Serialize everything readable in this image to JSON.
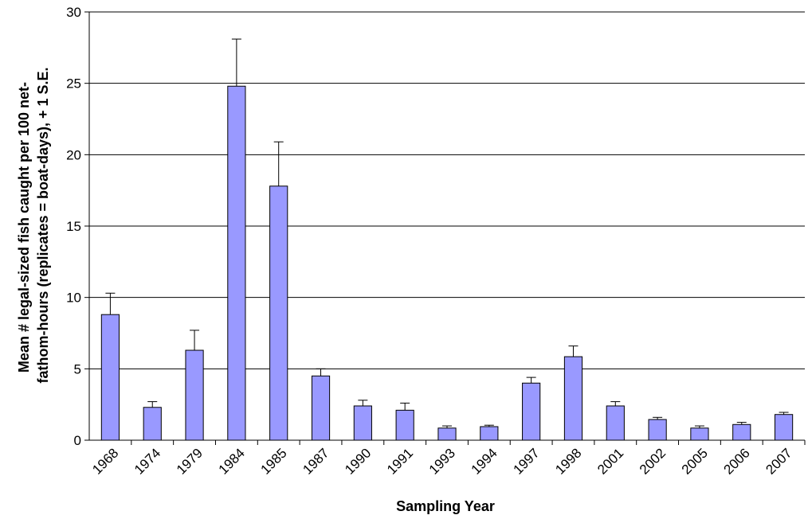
{
  "chart_data": {
    "type": "bar",
    "title": "",
    "xlabel": "Sampling Year",
    "ylabel_lines": [
      "Mean # legal-sized fish caught per 100 net-",
      "fathom-hours (replicates = boat-days), + 1 S.E."
    ],
    "categories": [
      "1968",
      "1974",
      "1979",
      "1984",
      "1985",
      "1987",
      "1990",
      "1991",
      "1993",
      "1994",
      "1997",
      "1998",
      "2001",
      "2002",
      "2005",
      "2006",
      "2007"
    ],
    "values": [
      8.8,
      2.3,
      6.3,
      24.8,
      17.8,
      4.5,
      2.4,
      2.1,
      0.85,
      0.95,
      4.0,
      5.85,
      2.4,
      1.45,
      0.85,
      1.1,
      1.8
    ],
    "error_plus": [
      1.5,
      0.4,
      1.4,
      3.3,
      3.1,
      0.5,
      0.4,
      0.5,
      0.15,
      0.1,
      0.4,
      0.75,
      0.3,
      0.15,
      0.15,
      0.15,
      0.15
    ],
    "ylim": [
      0,
      30
    ],
    "yticks": [
      "0",
      "5",
      "10",
      "15",
      "20",
      "25",
      "30"
    ],
    "grid": true,
    "bar_color": "#9999ff",
    "bar_edge_color": "#000000"
  }
}
